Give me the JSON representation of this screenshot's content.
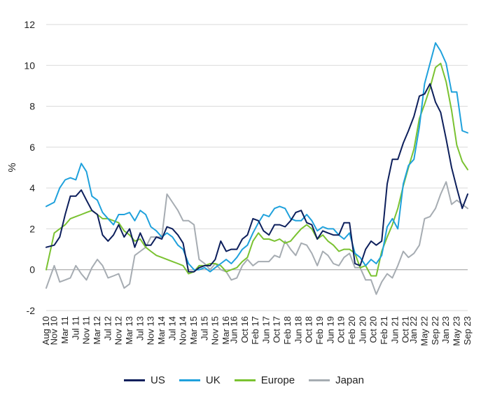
{
  "chart_data": {
    "type": "line",
    "title": "",
    "xlabel": "",
    "ylabel": "%",
    "ylim": [
      -2,
      12
    ],
    "yticks": [
      -2,
      0,
      2,
      4,
      6,
      8,
      10,
      12
    ],
    "xlim": [
      2010.58,
      2023.67
    ],
    "grid": "horizontal",
    "legend_position": "bottom",
    "x_tick_labels": [
      "Aug 10",
      "Nov 10",
      "Mar 11",
      "Jul 11",
      "Nov 11",
      "Mar 12",
      "Jul 12",
      "Nov 12",
      "Mar 13",
      "Jul 13",
      "Nov 13",
      "Mar 14",
      "Jul 14",
      "Nov 14",
      "Mar 15",
      "Jul 15",
      "Nov 15",
      "Mar 16",
      "Jun 16",
      "Oct 16",
      "Feb 17",
      "Jun 17",
      "Oct 17",
      "Feb 18",
      "Jun 18",
      "Oct 18",
      "Feb 19",
      "Jun 19",
      "Oct 19",
      "Feb 20",
      "Jun 20",
      "Oct 20",
      "Feb 21",
      "Jun 21",
      "Oct 21",
      "Jan 22",
      "May 22",
      "Sep 22",
      "Jan 23",
      "May 23",
      "Sep 23"
    ],
    "x_tick_positions": [
      2010.58,
      2010.83,
      2011.17,
      2011.5,
      2011.83,
      2012.17,
      2012.5,
      2012.83,
      2013.17,
      2013.5,
      2013.83,
      2014.17,
      2014.5,
      2014.83,
      2015.17,
      2015.5,
      2015.83,
      2016.17,
      2016.42,
      2016.75,
      2017.08,
      2017.42,
      2017.75,
      2018.08,
      2018.42,
      2018.75,
      2019.08,
      2019.42,
      2019.75,
      2020.08,
      2020.42,
      2020.75,
      2021.08,
      2021.42,
      2021.75,
      2022.0,
      2022.33,
      2022.67,
      2023.0,
      2023.33,
      2023.67
    ],
    "series": [
      {
        "name": "US",
        "color": "#0d1f5c",
        "x": [
          2010.58,
          2010.83,
          2011.0,
          2011.17,
          2011.33,
          2011.5,
          2011.67,
          2011.83,
          2012.0,
          2012.17,
          2012.33,
          2012.5,
          2012.67,
          2012.83,
          2013.0,
          2013.17,
          2013.33,
          2013.5,
          2013.67,
          2013.83,
          2014.0,
          2014.17,
          2014.33,
          2014.5,
          2014.67,
          2014.83,
          2015.0,
          2015.17,
          2015.33,
          2015.5,
          2015.67,
          2015.83,
          2016.0,
          2016.17,
          2016.33,
          2016.5,
          2016.67,
          2016.83,
          2017.0,
          2017.17,
          2017.33,
          2017.5,
          2017.67,
          2017.83,
          2018.0,
          2018.17,
          2018.33,
          2018.5,
          2018.67,
          2018.83,
          2019.0,
          2019.17,
          2019.33,
          2019.5,
          2019.67,
          2019.83,
          2020.0,
          2020.17,
          2020.33,
          2020.5,
          2020.67,
          2020.83,
          2021.0,
          2021.17,
          2021.33,
          2021.5,
          2021.67,
          2021.83,
          2022.0,
          2022.17,
          2022.33,
          2022.5,
          2022.67,
          2022.83,
          2023.0,
          2023.17,
          2023.33,
          2023.5,
          2023.67
        ],
        "values": [
          1.1,
          1.2,
          1.6,
          2.7,
          3.6,
          3.6,
          3.9,
          3.4,
          2.9,
          2.7,
          1.7,
          1.4,
          1.7,
          2.2,
          1.6,
          2.0,
          1.1,
          1.8,
          1.2,
          1.2,
          1.6,
          1.5,
          2.1,
          2.0,
          1.7,
          1.3,
          -0.1,
          -0.1,
          0.1,
          0.2,
          0.2,
          0.5,
          1.4,
          0.9,
          1.0,
          1.0,
          1.5,
          1.7,
          2.5,
          2.4,
          1.9,
          1.7,
          2.2,
          2.2,
          2.1,
          2.4,
          2.8,
          2.9,
          2.3,
          2.2,
          1.5,
          1.9,
          1.8,
          1.7,
          1.7,
          2.3,
          2.3,
          0.3,
          0.2,
          1.0,
          1.4,
          1.2,
          1.4,
          4.2,
          5.4,
          5.4,
          6.2,
          6.8,
          7.5,
          8.5,
          8.6,
          9.1,
          8.2,
          7.7,
          6.4,
          5.0,
          4.0,
          3.0,
          3.7
        ]
      },
      {
        "name": "UK",
        "color": "#1fa1dc",
        "x": [
          2010.58,
          2010.83,
          2011.0,
          2011.17,
          2011.33,
          2011.5,
          2011.67,
          2011.83,
          2012.0,
          2012.17,
          2012.33,
          2012.5,
          2012.67,
          2012.83,
          2013.0,
          2013.17,
          2013.33,
          2013.5,
          2013.67,
          2013.83,
          2014.0,
          2014.17,
          2014.33,
          2014.5,
          2014.67,
          2014.83,
          2015.0,
          2015.17,
          2015.33,
          2015.5,
          2015.67,
          2015.83,
          2016.0,
          2016.17,
          2016.33,
          2016.5,
          2016.67,
          2016.83,
          2017.0,
          2017.17,
          2017.33,
          2017.5,
          2017.67,
          2017.83,
          2018.0,
          2018.17,
          2018.33,
          2018.5,
          2018.67,
          2018.83,
          2019.0,
          2019.17,
          2019.33,
          2019.5,
          2019.67,
          2019.83,
          2020.0,
          2020.17,
          2020.33,
          2020.5,
          2020.67,
          2020.83,
          2021.0,
          2021.17,
          2021.33,
          2021.5,
          2021.67,
          2021.83,
          2022.0,
          2022.17,
          2022.33,
          2022.5,
          2022.67,
          2022.83,
          2023.0,
          2023.17,
          2023.33,
          2023.5,
          2023.67
        ],
        "values": [
          3.1,
          3.3,
          4.0,
          4.4,
          4.5,
          4.4,
          5.2,
          4.8,
          3.6,
          3.4,
          2.8,
          2.5,
          2.2,
          2.7,
          2.7,
          2.8,
          2.4,
          2.9,
          2.7,
          2.1,
          1.9,
          1.6,
          1.8,
          1.6,
          1.2,
          1.0,
          0.3,
          0.0,
          0.0,
          0.1,
          -0.1,
          0.1,
          0.3,
          0.5,
          0.3,
          0.6,
          1.0,
          1.2,
          1.8,
          2.3,
          2.7,
          2.6,
          3.0,
          3.1,
          3.0,
          2.5,
          2.4,
          2.4,
          2.7,
          2.4,
          1.9,
          2.1,
          2.0,
          2.0,
          1.7,
          1.5,
          1.8,
          0.8,
          0.6,
          0.2,
          0.5,
          0.3,
          0.7,
          2.1,
          2.5,
          2.0,
          4.2,
          5.1,
          5.4,
          7.0,
          9.1,
          10.1,
          11.1,
          10.7,
          10.1,
          8.7,
          8.7,
          6.8,
          6.7
        ]
      },
      {
        "name": "Europe",
        "color": "#7ac231",
        "x": [
          2010.58,
          2010.83,
          2011.0,
          2011.17,
          2011.33,
          2011.5,
          2011.67,
          2011.83,
          2012.0,
          2012.17,
          2012.33,
          2012.5,
          2012.67,
          2012.83,
          2013.0,
          2013.17,
          2013.33,
          2013.5,
          2013.67,
          2013.83,
          2014.0,
          2014.17,
          2014.33,
          2014.5,
          2014.67,
          2014.83,
          2015.0,
          2015.17,
          2015.33,
          2015.5,
          2015.67,
          2015.83,
          2016.0,
          2016.17,
          2016.33,
          2016.5,
          2016.67,
          2016.83,
          2017.0,
          2017.17,
          2017.33,
          2017.5,
          2017.67,
          2017.83,
          2018.0,
          2018.17,
          2018.33,
          2018.5,
          2018.67,
          2018.83,
          2019.0,
          2019.17,
          2019.33,
          2019.5,
          2019.67,
          2019.83,
          2020.0,
          2020.17,
          2020.33,
          2020.5,
          2020.67,
          2020.83,
          2021.0,
          2021.17,
          2021.33,
          2021.5,
          2021.67,
          2021.83,
          2022.0,
          2022.17,
          2022.33,
          2022.5,
          2022.67,
          2022.83,
          2023.0,
          2023.17,
          2023.33,
          2023.5,
          2023.67
        ],
        "values": [
          0.0,
          1.8,
          2.0,
          2.2,
          2.5,
          2.6,
          2.7,
          2.8,
          2.9,
          2.7,
          2.5,
          2.5,
          2.4,
          2.3,
          1.9,
          1.7,
          1.4,
          1.5,
          1.1,
          0.9,
          0.7,
          0.6,
          0.5,
          0.4,
          0.3,
          0.2,
          -0.2,
          -0.1,
          0.2,
          0.2,
          0.3,
          0.3,
          0.2,
          -0.1,
          0.0,
          0.1,
          0.4,
          0.6,
          1.4,
          1.8,
          1.5,
          1.5,
          1.4,
          1.5,
          1.3,
          1.4,
          1.7,
          2.0,
          2.2,
          2.0,
          1.5,
          1.7,
          1.4,
          1.2,
          0.9,
          1.0,
          1.0,
          0.8,
          0.1,
          0.2,
          -0.3,
          -0.3,
          0.9,
          1.6,
          2.2,
          3.0,
          4.1,
          5.0,
          5.9,
          7.4,
          8.1,
          8.9,
          9.9,
          10.1,
          9.2,
          7.8,
          6.1,
          5.3,
          4.9
        ]
      },
      {
        "name": "Japan",
        "color": "#a6acb2",
        "x": [
          2010.58,
          2010.83,
          2011.0,
          2011.17,
          2011.33,
          2011.5,
          2011.67,
          2011.83,
          2012.0,
          2012.17,
          2012.33,
          2012.5,
          2012.67,
          2012.83,
          2013.0,
          2013.17,
          2013.33,
          2013.5,
          2013.67,
          2013.83,
          2014.0,
          2014.17,
          2014.33,
          2014.5,
          2014.67,
          2014.83,
          2015.0,
          2015.17,
          2015.33,
          2015.5,
          2015.67,
          2015.83,
          2016.0,
          2016.17,
          2016.33,
          2016.5,
          2016.67,
          2016.83,
          2017.0,
          2017.17,
          2017.33,
          2017.5,
          2017.67,
          2017.83,
          2018.0,
          2018.17,
          2018.33,
          2018.5,
          2018.67,
          2018.83,
          2019.0,
          2019.17,
          2019.33,
          2019.5,
          2019.67,
          2019.83,
          2020.0,
          2020.17,
          2020.33,
          2020.5,
          2020.67,
          2020.83,
          2021.0,
          2021.17,
          2021.33,
          2021.5,
          2021.67,
          2021.83,
          2022.0,
          2022.17,
          2022.33,
          2022.5,
          2022.67,
          2022.83,
          2023.0,
          2023.17,
          2023.33,
          2023.5,
          2023.67
        ],
        "values": [
          -0.9,
          0.2,
          -0.6,
          -0.5,
          -0.4,
          0.2,
          -0.2,
          -0.5,
          0.1,
          0.5,
          0.2,
          -0.4,
          -0.3,
          -0.2,
          -0.9,
          -0.7,
          0.7,
          0.9,
          1.1,
          1.6,
          1.6,
          1.6,
          3.7,
          3.3,
          2.9,
          2.4,
          2.4,
          2.2,
          0.5,
          0.3,
          0.0,
          0.3,
          0.0,
          -0.1,
          -0.5,
          -0.4,
          0.2,
          0.5,
          0.2,
          0.4,
          0.4,
          0.4,
          0.7,
          0.6,
          1.4,
          1.0,
          0.7,
          1.3,
          1.2,
          0.8,
          0.2,
          0.9,
          0.7,
          0.3,
          0.2,
          0.6,
          0.8,
          0.1,
          0.1,
          -0.5,
          -0.5,
          -1.2,
          -0.6,
          -0.2,
          -0.4,
          0.2,
          0.9,
          0.6,
          0.8,
          1.2,
          2.5,
          2.6,
          3.0,
          3.7,
          4.3,
          3.2,
          3.4,
          3.2,
          3.0
        ]
      }
    ]
  }
}
